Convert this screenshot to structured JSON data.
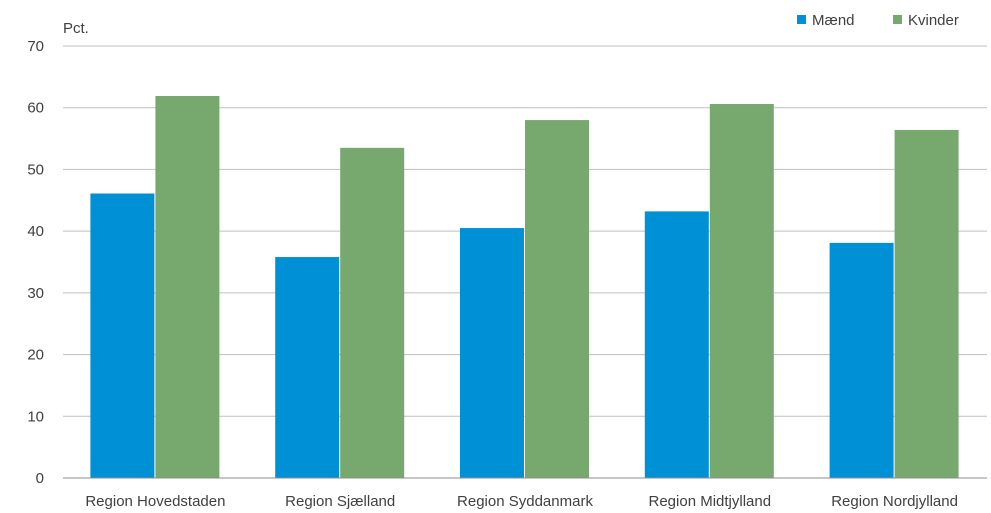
{
  "chart_data": {
    "type": "bar",
    "ylabel": "Pct.",
    "ylim": [
      0,
      70
    ],
    "yticks": [
      "0",
      "10",
      "20",
      "30",
      "40",
      "50",
      "60",
      "70"
    ],
    "categories": [
      "Region Hovedstaden",
      "Region Sjælland",
      "Region Syddanmark",
      "Region Midtjylland",
      "Region Nordjylland"
    ],
    "series": [
      {
        "name": "Mænd",
        "color": "#0090d6",
        "values": [
          46.1,
          35.8,
          40.5,
          43.2,
          38.1
        ]
      },
      {
        "name": "Kvinder",
        "color": "#77a96f",
        "values": [
          61.9,
          53.5,
          58.0,
          60.6,
          56.4
        ]
      }
    ],
    "grid": true,
    "legend_position": "top-right"
  }
}
